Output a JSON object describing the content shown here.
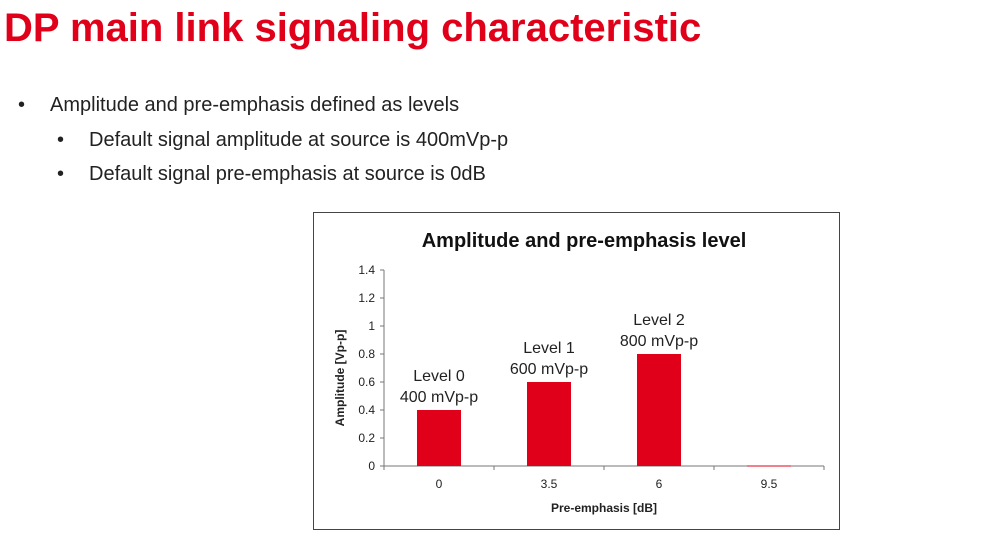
{
  "slide": {
    "title": "DP main link signaling characteristic",
    "bullets": [
      {
        "text": "Amplitude and pre-emphasis defined as levels"
      },
      {
        "text": "Default signal amplitude at source is 400mVp-p"
      },
      {
        "text": "Default signal pre-emphasis at source is 0dB"
      }
    ],
    "bullet_glyph": "•"
  },
  "colors": {
    "title": "#e1001a",
    "bar": "#e1001a",
    "text": "#222222"
  },
  "chart_data": {
    "type": "bar",
    "title": "Amplitude and pre-emphasis level",
    "xlabel": "Pre-emphasis  [dB]",
    "ylabel": "Amplitude  [Vp-p]",
    "categories": [
      "0",
      "3.5",
      "6",
      "9.5"
    ],
    "values": [
      0.4,
      0.6,
      0.8,
      0
    ],
    "ylim": [
      0,
      1.4
    ],
    "yticks": [
      0,
      0.2,
      0.4,
      0.6,
      0.8,
      1,
      1.2,
      1.4
    ],
    "ytick_labels": [
      "0",
      "0.2",
      "0.4",
      "0.6",
      "0.8",
      "1",
      "1.2",
      "1.4"
    ],
    "annotations": [
      {
        "lines": [
          "Level 0",
          "400 mVp-p"
        ]
      },
      {
        "lines": [
          "Level 1",
          "600 mVp-p"
        ]
      },
      {
        "lines": [
          "Level 2",
          "800 mVp-p"
        ]
      },
      {
        "lines": []
      }
    ],
    "grid": false,
    "legend": "none"
  }
}
